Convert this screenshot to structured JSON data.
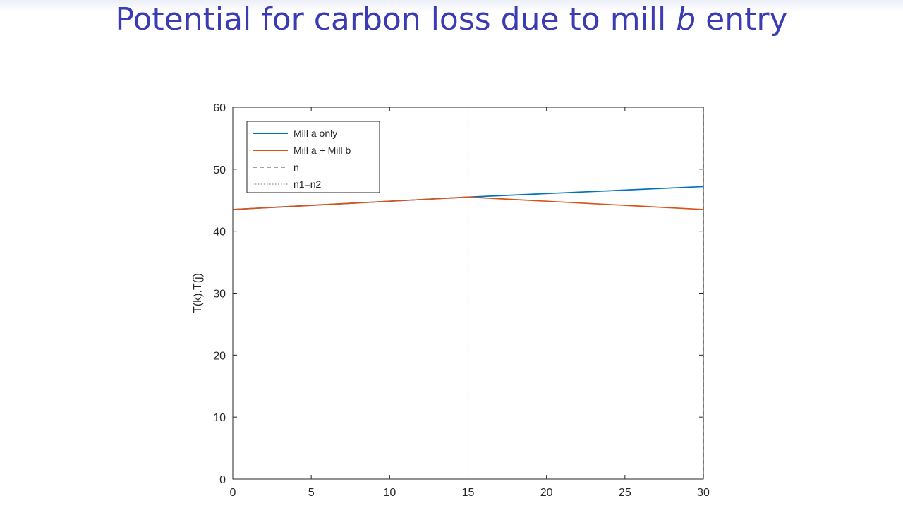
{
  "slide": {
    "title_pre": "Potential for carbon loss due to mill ",
    "title_em": "b",
    "title_post": " entry"
  },
  "chart_data": {
    "type": "line",
    "title": "",
    "xlabel": "",
    "ylabel": "T(k),T(j)",
    "xlim": [
      0,
      30
    ],
    "ylim": [
      0,
      60
    ],
    "x_ticks": [
      "0",
      "5",
      "10",
      "15",
      "20",
      "25",
      "30"
    ],
    "y_ticks": [
      "0",
      "10",
      "20",
      "30",
      "40",
      "50",
      "60"
    ],
    "grid": false,
    "legend_position": "top-left",
    "series": [
      {
        "name": "Mill a only",
        "style": "solid",
        "color": "#0072bd",
        "x": [
          0,
          15,
          30
        ],
        "y": [
          43.5,
          45.5,
          47.2
        ]
      },
      {
        "name": "Mill a + Mill b",
        "style": "solid",
        "color": "#d95319",
        "x": [
          0,
          15,
          30
        ],
        "y": [
          43.5,
          45.5,
          43.5
        ]
      }
    ],
    "vlines": [
      {
        "name": "n",
        "x": 30,
        "style": "dashed",
        "color": "#808080"
      },
      {
        "name": "n1=n2",
        "x": 15,
        "style": "dotted",
        "color": "#a0a0a0"
      }
    ]
  }
}
